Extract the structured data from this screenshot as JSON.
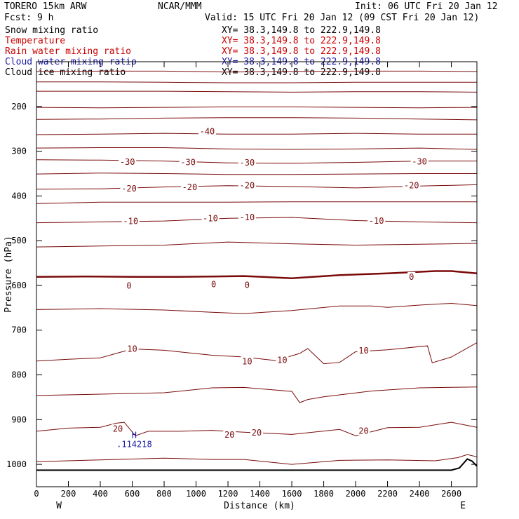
{
  "header": {
    "model": "TORERO  15km ARW",
    "center": "NCAR/MMM",
    "init": "Init: 06 UTC Fri 20 Jan 12",
    "fcst": "Fcst:    9 h",
    "valid": "Valid: 15 UTC Fri 20 Jan 12 (09 CST Fri 20 Jan 12)"
  },
  "fields": [
    {
      "name": "Snow mixing ratio",
      "xy": "XY=  38.3,149.8 to 222.9,149.8",
      "color": "#000000"
    },
    {
      "name": "Temperature",
      "xy": "XY=  38.3,149.8 to 222.9,149.8",
      "color": "#cc0000"
    },
    {
      "name": "Rain water mixing ratio",
      "xy": "XY=  38.3,149.8 to 222.9,149.8",
      "color": "#cc0000"
    },
    {
      "name": "Cloud water mixing ratio",
      "xy": "XY=  38.3,149.8 to 222.9,149.8",
      "color": "#1a1aa6"
    },
    {
      "name": "Cloud ice mixing ratio",
      "xy": "XY=  38.3,149.8 to 222.9,149.8",
      "color": "#000000"
    }
  ],
  "chart_data": {
    "type": "line",
    "title": "",
    "xlabel": "Distance (km)",
    "ylabel": "Pressure (hPa)",
    "xlim": [
      0,
      2760
    ],
    "ylim": [
      1050,
      100
    ],
    "x_ticks": [
      0,
      200,
      400,
      600,
      800,
      1000,
      1200,
      1400,
      1600,
      1800,
      2000,
      2200,
      2400,
      2600
    ],
    "y_ticks": [
      200,
      300,
      400,
      500,
      600,
      700,
      800,
      900,
      1000
    ],
    "x_end_labels": {
      "left": "W",
      "right": "E"
    },
    "grid": false,
    "series_color": "#7a0a0a",
    "contour_labels": [
      {
        "text": "-40",
        "x": 1070,
        "y": 256
      },
      {
        "text": "-30",
        "x": 570,
        "y": 324
      },
      {
        "text": "-30",
        "x": 950,
        "y": 325
      },
      {
        "text": "-30",
        "x": 1320,
        "y": 326
      },
      {
        "text": "-30",
        "x": 2400,
        "y": 323
      },
      {
        "text": "-20",
        "x": 580,
        "y": 384
      },
      {
        "text": "-20",
        "x": 960,
        "y": 381
      },
      {
        "text": "-20",
        "x": 1320,
        "y": 377
      },
      {
        "text": "-20",
        "x": 2350,
        "y": 377
      },
      {
        "text": "-10",
        "x": 590,
        "y": 457
      },
      {
        "text": "-10",
        "x": 1090,
        "y": 450
      },
      {
        "text": "-10",
        "x": 1320,
        "y": 448
      },
      {
        "text": "-10",
        "x": 2130,
        "y": 456
      },
      {
        "text": "0",
        "x": 580,
        "y": 601
      },
      {
        "text": "0",
        "x": 1110,
        "y": 598
      },
      {
        "text": "0",
        "x": 1320,
        "y": 599
      },
      {
        "text": "0",
        "x": 2350,
        "y": 581
      },
      {
        "text": "10",
        "x": 600,
        "y": 742
      },
      {
        "text": "10",
        "x": 1320,
        "y": 770
      },
      {
        "text": "10",
        "x": 1540,
        "y": 767
      },
      {
        "text": "10",
        "x": 2050,
        "y": 746
      },
      {
        "text": "20",
        "x": 510,
        "y": 921
      },
      {
        "text": "20",
        "x": 1210,
        "y": 934
      },
      {
        "text": "20",
        "x": 1380,
        "y": 929
      },
      {
        "text": "20",
        "x": 2050,
        "y": 925
      }
    ],
    "marker": {
      "symbol": "H",
      "value": ".114218",
      "x": 560,
      "y": 935
    },
    "isotherms": [
      {
        "x": [
          0,
          400,
          800,
          1200,
          1600,
          2000,
          2400,
          2760
        ],
        "y": [
          122,
          121,
          121,
          123,
          122,
          121,
          121,
          122
        ]
      },
      {
        "x": [
          0,
          400,
          800,
          1200,
          1600,
          2000,
          2400,
          2760
        ],
        "y": [
          145,
          145,
          146,
          147,
          147,
          146,
          146,
          146
        ]
      },
      {
        "x": [
          0,
          400,
          800,
          1200,
          1600,
          2000,
          2400,
          2760
        ],
        "y": [
          166,
          166,
          166,
          167,
          168,
          167,
          167,
          168
        ]
      },
      {
        "x": [
          0,
          400,
          800,
          1200,
          1600,
          2000,
          2400,
          2760
        ],
        "y": [
          202,
          203,
          202,
          201,
          201,
          202,
          203,
          202
        ]
      },
      {
        "x": [
          0,
          400,
          800,
          1200,
          1600,
          2000,
          2400,
          2760
        ],
        "y": [
          229,
          228,
          226,
          225,
          225,
          226,
          228,
          230
        ]
      },
      {
        "x": [
          0,
          400,
          800,
          1200,
          1600,
          2000,
          2400,
          2760
        ],
        "y": [
          263,
          262,
          260,
          262,
          262,
          260,
          262,
          262
        ]
      },
      {
        "x": [
          0,
          400,
          800,
          1200,
          1600,
          2000,
          2400,
          2760
        ],
        "y": [
          293,
          292,
          292,
          295,
          296,
          295,
          293,
          296
        ]
      },
      {
        "x": [
          0,
          400,
          800,
          1200,
          1600,
          2000,
          2400,
          2760
        ],
        "y": [
          319,
          320,
          322,
          326,
          327,
          325,
          322,
          322
        ]
      },
      {
        "x": [
          0,
          400,
          800,
          1200,
          1600,
          2000,
          2400,
          2760
        ],
        "y": [
          351,
          349,
          350,
          352,
          352,
          351,
          350,
          350
        ]
      },
      {
        "x": [
          0,
          400,
          800,
          1200,
          1600,
          2000,
          2400,
          2760
        ],
        "y": [
          385,
          384,
          380,
          377,
          379,
          382,
          378,
          375
        ]
      },
      {
        "x": [
          0,
          400,
          800,
          1200,
          1600,
          2000,
          2400,
          2760
        ],
        "y": [
          417,
          414,
          414,
          414,
          413,
          413,
          413,
          413
        ]
      },
      {
        "x": [
          0,
          400,
          800,
          1200,
          1600,
          2000,
          2400,
          2760
        ],
        "y": [
          460,
          458,
          456,
          450,
          448,
          455,
          458,
          460
        ]
      },
      {
        "x": [
          0,
          400,
          800,
          1200,
          1600,
          2000,
          2400,
          2760
        ],
        "y": [
          514,
          512,
          510,
          503,
          507,
          510,
          508,
          506
        ]
      },
      {
        "x": [
          0,
          300,
          600,
          900,
          1100,
          1300,
          1600,
          1900,
          2200,
          2500,
          2600,
          2760
        ],
        "y": [
          581,
          580,
          581,
          581,
          580,
          579,
          584,
          577,
          573,
          568,
          568,
          573
        ]
      },
      {
        "x": [
          0,
          400,
          800,
          1100,
          1300,
          1600,
          1900,
          2100,
          2200,
          2400,
          2600,
          2760
        ],
        "y": [
          654,
          652,
          655,
          660,
          663,
          656,
          646,
          646,
          649,
          644,
          640,
          645
        ]
      },
      {
        "x": [
          0,
          200,
          400,
          600,
          800,
          1100,
          1300,
          1500,
          1650,
          1700,
          1800,
          1900,
          2000,
          2200,
          2450,
          2480,
          2600,
          2760
        ],
        "y": [
          769,
          765,
          762,
          742,
          745,
          756,
          760,
          768,
          752,
          741,
          775,
          772,
          748,
          744,
          735,
          773,
          760,
          728
        ]
      },
      {
        "x": [
          0,
          400,
          800,
          1100,
          1300,
          1600,
          1650,
          1700,
          1800,
          2100,
          2400,
          2760
        ],
        "y": [
          846,
          843,
          840,
          829,
          828,
          837,
          862,
          855,
          849,
          836,
          829,
          827
        ]
      },
      {
        "x": [
          0,
          200,
          400,
          500,
          550,
          620,
          700,
          900,
          1100,
          1300,
          1600,
          1900,
          2000,
          2200,
          2400,
          2600,
          2760
        ],
        "y": [
          926,
          919,
          917,
          908,
          906,
          936,
          926,
          926,
          924,
          928,
          933,
          922,
          936,
          918,
          917,
          906,
          917
        ]
      },
      {
        "x": [
          0,
          400,
          800,
          1100,
          1300,
          1600,
          1900,
          2200,
          2500,
          2640,
          2700,
          2760
        ],
        "y": [
          994,
          990,
          986,
          989,
          989,
          1000,
          991,
          990,
          992,
          985,
          978,
          983
        ]
      }
    ],
    "terrain": {
      "x": [
        0,
        2600,
        2650,
        2700,
        2730,
        2760
      ],
      "y": [
        1013,
        1013,
        1008,
        988,
        993,
        1004
      ]
    }
  }
}
